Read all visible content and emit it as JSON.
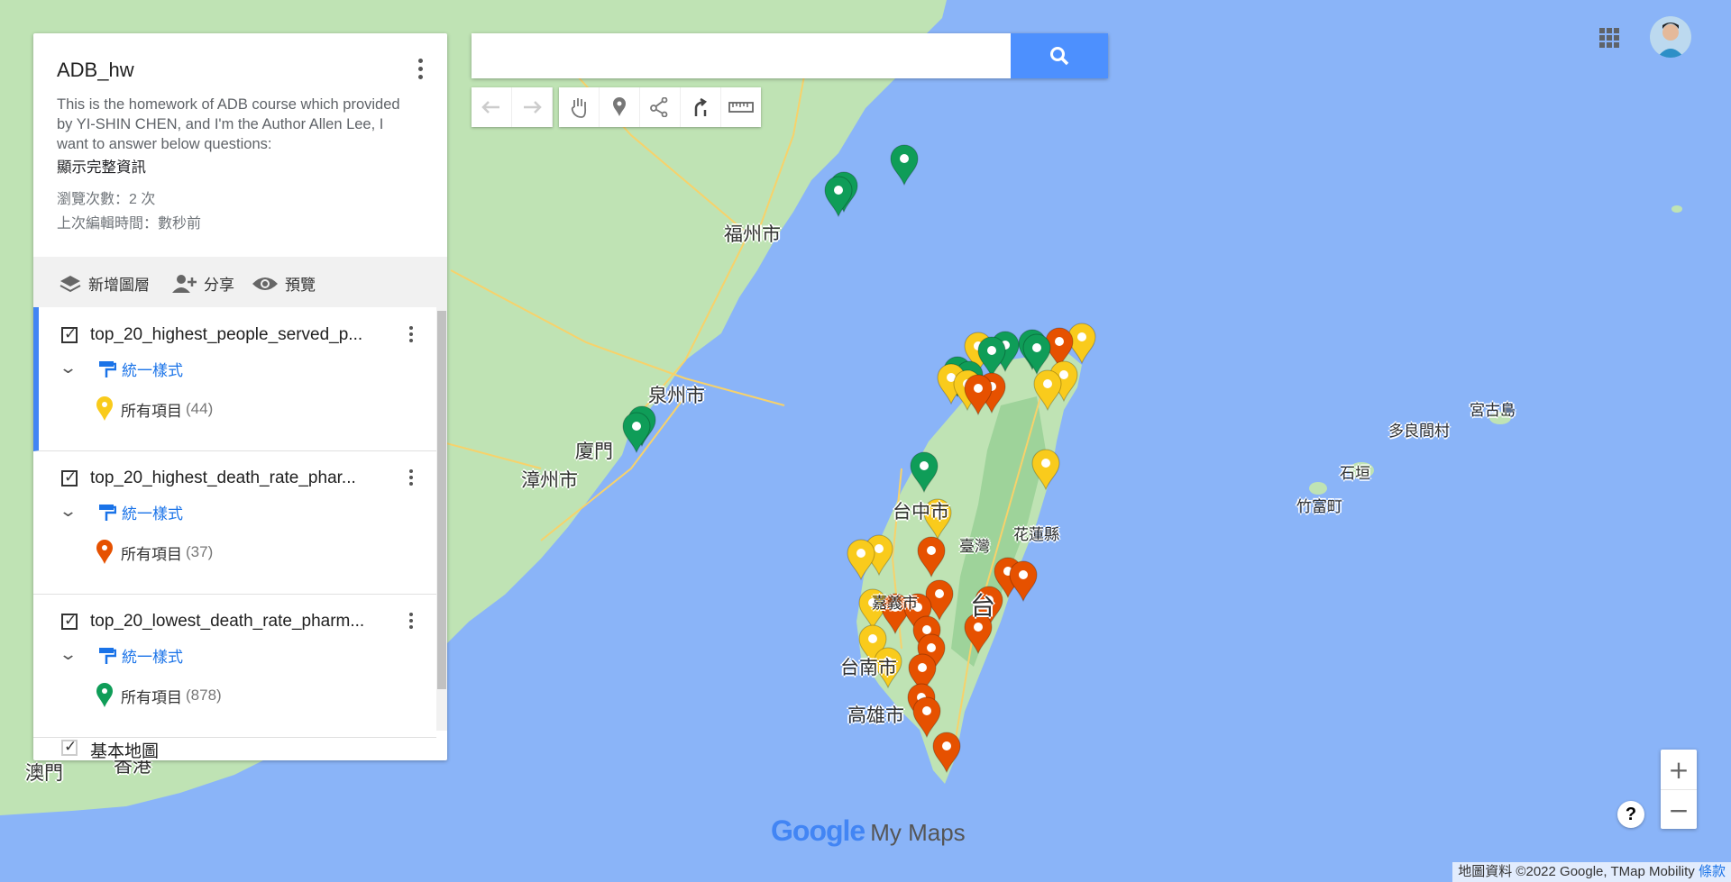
{
  "panel": {
    "title": "ADB_hw",
    "description": "This is the homework of ADB course which provided by YI-SHIN CHEN, and I'm the Author Allen Lee, I want to answer below questions:",
    "show_more": "顯示完整資訊",
    "views": "瀏覽次數：2 次",
    "last_edit": "上次編輯時間：數秒前",
    "actions": {
      "add_layer": "新增圖層",
      "share": "分享",
      "preview": "預覽"
    },
    "layers": [
      {
        "name": "top_20_highest_people_served_p...",
        "style": "統一樣式",
        "items_label": "所有項目",
        "count": "(44)",
        "color": "#f9cb1c"
      },
      {
        "name": "top_20_highest_death_rate_phar...",
        "style": "統一樣式",
        "items_label": "所有項目",
        "count": "(37)",
        "color": "#e65100"
      },
      {
        "name": "top_20_lowest_death_rate_pharm...",
        "style": "統一樣式",
        "items_label": "所有項目",
        "count": "(878)",
        "color": "#0f9d58"
      }
    ],
    "base_map": "基本地圖"
  },
  "search": {
    "placeholder": ""
  },
  "map": {
    "labels": {
      "fuzhou": "福州市",
      "quanzhou": "泉州市",
      "xiamen": "廈門",
      "zhangzhou": "漳州市",
      "taichung": "台中市",
      "taiwan": "臺灣",
      "hualien": "花蓮縣",
      "chiayi": "嘉義市",
      "tai": "台",
      "tainan": "台南市",
      "kaohsiung": "高雄市",
      "miyako": "宮古島",
      "taramajima": "多良間村",
      "ishigaki": "石垣",
      "taketomi": "竹富町",
      "macau": "澳門",
      "hongkong": "香港"
    },
    "colors": {
      "sea": "#8ab4f8",
      "land": "#bfe3b4",
      "yellow": "#f9cb1c",
      "orange": "#e65100",
      "green": "#0f9d58"
    }
  },
  "logo": {
    "google": "Google",
    "mymaps": "My Maps"
  },
  "attribution": {
    "text": "地圖資料 ©2022 Google, TMap Mobility",
    "terms": "條款"
  },
  "zoom": {
    "in": "+",
    "out": "−"
  },
  "help": "?"
}
